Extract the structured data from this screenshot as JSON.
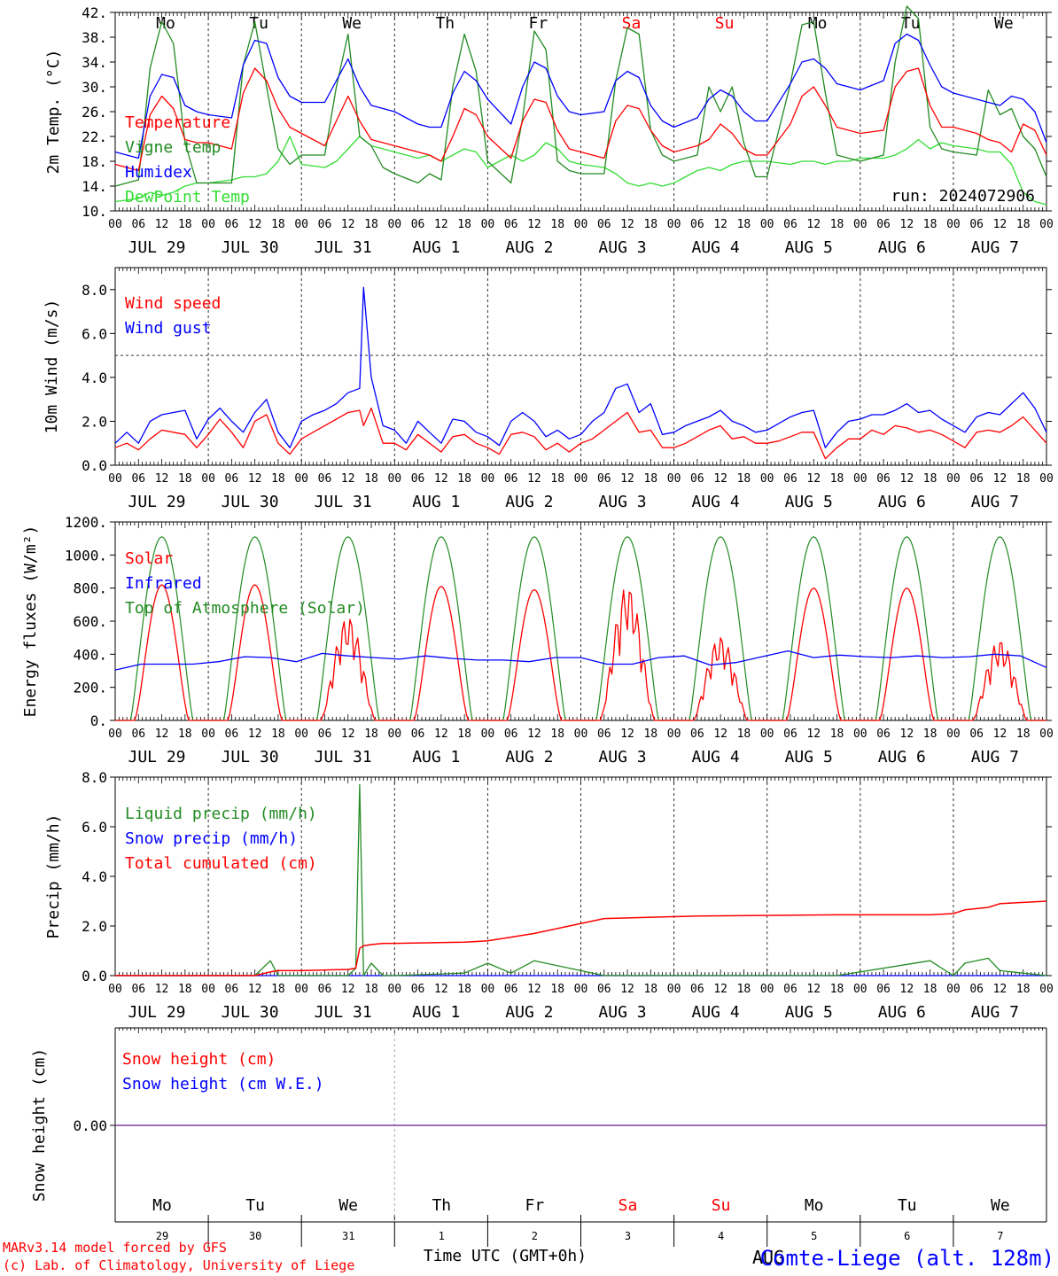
{
  "footer": {
    "credit_line1": "MARv3.14 model forced by GFS",
    "credit_line2": "(c) Lab. of Climatology, University of Liege",
    "xaxis_title": "Time UTC (GMT+0h)",
    "station": "Comte-Liege (alt. 128m)",
    "month_overlay": "AUG"
  },
  "colors": {
    "red": "#ff0000",
    "green": "#228b22",
    "lightgreen": "#33dd33",
    "blue": "#0000ff",
    "purple": "#7f3f9f",
    "axis": "#000000"
  },
  "days": {
    "weekday": [
      "Mo",
      "Tu",
      "We",
      "Th",
      "Fr",
      "Sa",
      "Su",
      "Mo",
      "Tu",
      "We"
    ],
    "weekend": [
      false,
      false,
      false,
      false,
      false,
      true,
      true,
      false,
      false,
      false
    ],
    "date_labels": [
      "JUL 29",
      "JUL 30",
      "JUL 31",
      "AUG  1",
      "AUG  2",
      "AUG  3",
      "AUG  4",
      "AUG  5",
      "AUG  6",
      "AUG  7"
    ],
    "day_numbers": [
      "29",
      "30",
      "31",
      "1",
      "2",
      "3",
      "4",
      "5",
      "6",
      "7"
    ],
    "hour_ticks": [
      "00",
      "06",
      "12",
      "18"
    ],
    "end_tick": "00"
  },
  "chart_data": [
    {
      "type": "line",
      "id": "temperature",
      "ylabel": "2m Temp. (°C)",
      "ylim": [
        10,
        42
      ],
      "yticks": [
        10,
        14,
        18,
        22,
        26,
        30,
        34,
        38,
        42
      ],
      "ytick_labels": [
        "10.",
        "14.",
        "18.",
        "22.",
        "26.",
        "30.",
        "34.",
        "38.",
        "42."
      ],
      "annotation": "run: 2024072906",
      "x_hours": [
        0,
        6,
        9,
        12,
        15,
        18,
        21,
        24,
        30,
        33,
        36,
        39,
        42,
        45,
        48,
        54,
        57,
        60,
        63,
        66,
        69,
        72,
        78,
        81,
        84,
        87,
        90,
        93,
        96,
        102,
        105,
        108,
        111,
        114,
        117,
        120,
        126,
        129,
        132,
        135,
        138,
        141,
        144,
        150,
        153,
        156,
        159,
        162,
        165,
        168,
        174,
        177,
        180,
        183,
        186,
        189,
        192,
        198,
        201,
        204,
        207,
        210,
        213,
        216,
        222,
        225,
        228,
        231,
        234,
        237,
        240
      ],
      "series": [
        {
          "name": "Temperature",
          "color": "#ff0000",
          "values": [
            17.5,
            16.5,
            25.5,
            28.5,
            26.5,
            21.5,
            21.0,
            21.0,
            20.0,
            29.0,
            33.0,
            31.0,
            26.5,
            23.5,
            22.5,
            20.5,
            24.5,
            28.5,
            24.5,
            21.5,
            21.0,
            20.5,
            19.5,
            19.0,
            18.0,
            22.0,
            26.5,
            25.5,
            22.0,
            18.5,
            24.5,
            28.0,
            27.5,
            23.0,
            20.0,
            19.5,
            18.5,
            24.5,
            27.0,
            26.5,
            23.0,
            20.5,
            19.5,
            20.5,
            21.5,
            24.0,
            22.5,
            20.0,
            19.0,
            19.0,
            24.0,
            28.5,
            30.0,
            27.0,
            23.5,
            23.0,
            22.5,
            23.0,
            30.0,
            32.5,
            33.0,
            27.0,
            23.5,
            23.5,
            22.5,
            21.5,
            21.0,
            19.5,
            24.0,
            23.0,
            19.0
          ]
        },
        {
          "name": "Vigne temp",
          "color": "#228b22",
          "values": [
            14.0,
            15.0,
            33.0,
            40.5,
            37.0,
            21.0,
            14.5,
            14.5,
            14.5,
            33.5,
            40.5,
            30.0,
            20.0,
            17.5,
            19.0,
            19.0,
            30.0,
            38.5,
            22.0,
            20.5,
            17.0,
            16.0,
            14.5,
            16.0,
            15.0,
            30.0,
            38.5,
            32.5,
            18.0,
            14.5,
            25.0,
            39.0,
            36.0,
            18.0,
            16.5,
            16.0,
            16.0,
            31.0,
            39.5,
            38.5,
            23.0,
            19.0,
            18.0,
            19.0,
            30.0,
            26.0,
            30.0,
            21.0,
            15.5,
            15.5,
            30.5,
            40.0,
            40.5,
            29.0,
            19.0,
            18.5,
            18.0,
            19.0,
            34.0,
            43.0,
            41.0,
            23.5,
            20.0,
            19.5,
            19.0,
            29.5,
            25.5,
            26.5,
            22.0,
            20.0,
            15.5
          ]
        },
        {
          "name": "Humidex",
          "color": "#0000ff",
          "values": [
            19.5,
            18.5,
            28.5,
            32.0,
            31.5,
            27.0,
            26.0,
            25.5,
            25.0,
            33.5,
            37.5,
            37.0,
            31.5,
            28.5,
            27.5,
            27.5,
            31.0,
            34.5,
            30.0,
            27.0,
            26.5,
            26.0,
            24.0,
            23.5,
            23.5,
            29.0,
            32.5,
            31.0,
            28.0,
            24.0,
            30.0,
            34.0,
            33.0,
            28.5,
            26.0,
            25.5,
            26.0,
            31.0,
            32.5,
            31.5,
            27.0,
            24.5,
            23.5,
            25.0,
            28.0,
            29.5,
            28.5,
            26.0,
            24.5,
            24.5,
            30.5,
            34.0,
            34.5,
            33.0,
            30.5,
            30.0,
            29.5,
            31.0,
            37.0,
            38.5,
            37.5,
            33.5,
            30.0,
            29.0,
            28.0,
            27.5,
            27.0,
            28.5,
            28.0,
            26.0,
            21.0
          ]
        },
        {
          "name": "DewPoint Temp",
          "color": "#33dd33",
          "values": [
            11.5,
            12.0,
            13.0,
            12.5,
            13.0,
            14.0,
            14.5,
            14.5,
            15.0,
            15.5,
            15.5,
            16.0,
            18.0,
            22.0,
            17.5,
            17.0,
            18.0,
            20.0,
            22.0,
            20.5,
            20.0,
            19.5,
            18.5,
            19.0,
            18.0,
            19.0,
            20.0,
            19.5,
            17.0,
            19.0,
            18.0,
            19.0,
            21.0,
            20.0,
            18.0,
            17.5,
            17.0,
            16.0,
            14.5,
            14.0,
            14.5,
            14.0,
            14.5,
            16.5,
            17.0,
            16.5,
            17.5,
            18.0,
            18.0,
            18.0,
            17.5,
            18.0,
            18.0,
            17.5,
            18.0,
            18.0,
            18.5,
            18.5,
            19.0,
            20.0,
            21.5,
            20.0,
            21.0,
            20.5,
            20.0,
            19.5,
            19.5,
            17.5,
            13.0,
            11.5,
            11.0
          ]
        }
      ]
    },
    {
      "type": "line",
      "id": "wind",
      "ylabel": "10m Wind (m/s)",
      "ylim": [
        0,
        9
      ],
      "yticks": [
        0,
        2,
        4,
        6,
        8
      ],
      "ytick_labels": [
        "0.0",
        "2.0",
        "4.0",
        "6.0",
        "8.0"
      ],
      "reference_line": 5,
      "x_hours": [
        0,
        3,
        6,
        9,
        12,
        15,
        18,
        21,
        24,
        27,
        30,
        33,
        36,
        39,
        42,
        45,
        48,
        51,
        54,
        57,
        60,
        63,
        64,
        66,
        69,
        72,
        75,
        78,
        81,
        84,
        87,
        90,
        93,
        96,
        99,
        102,
        105,
        108,
        111,
        114,
        117,
        120,
        123,
        126,
        129,
        132,
        135,
        138,
        141,
        144,
        147,
        150,
        153,
        156,
        159,
        162,
        165,
        168,
        171,
        174,
        177,
        180,
        183,
        186,
        189,
        192,
        195,
        198,
        201,
        204,
        207,
        210,
        213,
        216,
        219,
        222,
        225,
        228,
        231,
        234,
        237,
        240
      ],
      "series": [
        {
          "name": "Wind speed",
          "color": "#ff0000",
          "values": [
            0.8,
            1.0,
            0.7,
            1.2,
            1.6,
            1.5,
            1.4,
            0.8,
            1.4,
            2.1,
            1.5,
            0.8,
            2.0,
            2.3,
            1.0,
            0.5,
            1.2,
            1.5,
            1.8,
            2.1,
            2.4,
            2.5,
            1.8,
            2.6,
            1.0,
            1.0,
            0.7,
            1.4,
            1.0,
            0.6,
            1.3,
            1.4,
            1.0,
            0.8,
            0.5,
            1.4,
            1.5,
            1.3,
            0.7,
            1.0,
            0.6,
            1.0,
            1.2,
            1.6,
            2.0,
            2.4,
            1.5,
            1.6,
            0.8,
            0.8,
            1.0,
            1.3,
            1.6,
            1.8,
            1.2,
            1.3,
            1.0,
            1.0,
            1.1,
            1.3,
            1.5,
            1.5,
            0.3,
            0.8,
            1.2,
            1.2,
            1.6,
            1.4,
            1.8,
            1.7,
            1.5,
            1.6,
            1.4,
            1.1,
            0.8,
            1.5,
            1.6,
            1.5,
            1.8,
            2.2,
            1.6,
            1.0
          ]
        },
        {
          "name": "Wind gust",
          "color": "#0000ff",
          "values": [
            1.0,
            1.5,
            1.0,
            2.0,
            2.3,
            2.4,
            2.5,
            1.2,
            2.1,
            2.6,
            2.0,
            1.5,
            2.4,
            3.0,
            1.5,
            0.8,
            2.0,
            2.3,
            2.5,
            2.8,
            3.3,
            3.5,
            8.1,
            4.0,
            1.8,
            1.6,
            1.0,
            2.0,
            1.5,
            1.0,
            2.1,
            2.0,
            1.5,
            1.3,
            0.9,
            2.0,
            2.4,
            2.0,
            1.3,
            1.6,
            1.2,
            1.4,
            2.0,
            2.4,
            3.5,
            3.7,
            2.4,
            2.8,
            1.4,
            1.5,
            1.8,
            2.0,
            2.2,
            2.5,
            2.0,
            1.8,
            1.5,
            1.6,
            1.9,
            2.2,
            2.4,
            2.5,
            0.8,
            1.5,
            2.0,
            2.1,
            2.3,
            2.3,
            2.5,
            2.8,
            2.4,
            2.5,
            2.1,
            1.8,
            1.5,
            2.2,
            2.4,
            2.3,
            2.8,
            3.3,
            2.6,
            1.5
          ]
        }
      ]
    },
    {
      "type": "line",
      "id": "energy",
      "ylabel": "Energy fluxes (W/m²)",
      "ylim": [
        0,
        1200
      ],
      "yticks": [
        0,
        200,
        400,
        600,
        800,
        1000,
        1200
      ],
      "ytick_labels": [
        "0.",
        "200.",
        "400.",
        "600.",
        "800.",
        "1000.",
        "1200."
      ],
      "solar_peaks": [
        820,
        820,
        630,
        810,
        790,
        820,
        510,
        800,
        800,
        490
      ],
      "toa_peak": 1110,
      "infrared_values": [
        305,
        340,
        340,
        340,
        355,
        385,
        380,
        355,
        405,
        390,
        380,
        370,
        390,
        375,
        365,
        365,
        355,
        380,
        380,
        340,
        340,
        380,
        390,
        335,
        350,
        385,
        420,
        380,
        395,
        385,
        380,
        390,
        380,
        385,
        400,
        390,
        320
      ],
      "series": [
        {
          "name": "Solar",
          "color": "#ff0000"
        },
        {
          "name": "Infrared",
          "color": "#0000ff"
        },
        {
          "name": "Top of Atmosphere (Solar)",
          "color": "#228b22"
        }
      ]
    },
    {
      "type": "line",
      "id": "precip",
      "ylabel": "Precip (mm/h)",
      "ylim": [
        0,
        8
      ],
      "yticks": [
        0,
        2,
        4,
        6,
        8
      ],
      "ytick_labels": [
        "0.0",
        "2.0",
        "4.0",
        "6.0",
        "8.0"
      ],
      "x_hours": [
        0,
        36,
        40,
        42,
        44,
        48,
        60,
        62,
        63,
        64,
        66,
        69,
        72,
        90,
        96,
        102,
        108,
        117,
        126,
        150,
        186,
        210,
        216,
        219,
        225,
        228,
        240
      ],
      "series": [
        {
          "name": "Liquid precip (mm/h)",
          "color": "#228b22",
          "values": [
            0.0,
            0.0,
            0.6,
            0.0,
            0.0,
            0.0,
            0.0,
            0.3,
            7.7,
            0.0,
            0.5,
            0.0,
            0.0,
            0.1,
            0.5,
            0.1,
            0.6,
            0.3,
            0.0,
            0.0,
            0.0,
            0.6,
            0.0,
            0.5,
            0.7,
            0.2,
            0.0
          ]
        },
        {
          "name": "Snow precip (mm/h)",
          "color": "#0000ff",
          "values": [
            0.0,
            0.0,
            0.0,
            0.0,
            0.0,
            0.0,
            0.0,
            0.0,
            0.0,
            0.0,
            0.0,
            0.0,
            0.0,
            0.0,
            0.0,
            0.0,
            0.0,
            0.0,
            0.0,
            0.0,
            0.0,
            0.0,
            0.0,
            0.0,
            0.0,
            0.0,
            0.0
          ]
        },
        {
          "name": "Total cumulated (cm)",
          "color": "#ff0000",
          "values": [
            0.0,
            0.0,
            0.15,
            0.2,
            0.2,
            0.2,
            0.25,
            0.3,
            1.1,
            1.2,
            1.25,
            1.3,
            1.3,
            1.35,
            1.4,
            1.55,
            1.7,
            2.0,
            2.3,
            2.4,
            2.45,
            2.45,
            2.5,
            2.65,
            2.75,
            2.9,
            3.0
          ]
        }
      ]
    },
    {
      "type": "line",
      "id": "snow",
      "ylabel": "Snow height (cm)",
      "yticks": [
        0
      ],
      "ytick_labels": [
        "0.00"
      ],
      "series": [
        {
          "name": "Snow height (cm)",
          "color": "#ff0000",
          "values": [
            0.0,
            0.0
          ]
        },
        {
          "name": "Snow height (cm W.E.)",
          "color": "#0000ff",
          "values": [
            0.0,
            0.0
          ]
        }
      ]
    }
  ]
}
